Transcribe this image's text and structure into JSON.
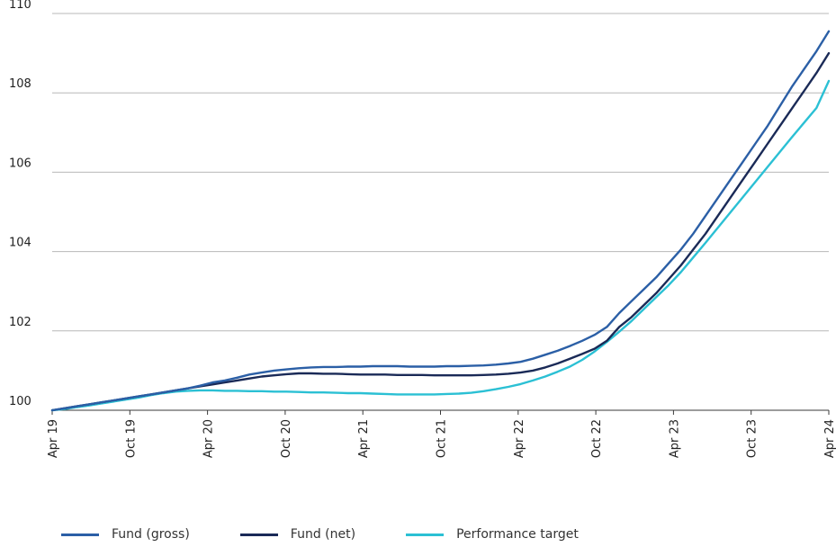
{
  "chart_data": {
    "type": "line",
    "title": "",
    "xlabel": "",
    "ylabel": "",
    "ylim": [
      100,
      110
    ],
    "yticks": [
      100,
      102,
      104,
      106,
      108,
      110
    ],
    "xticks": [
      "Apr 19",
      "Oct 19",
      "Apr 20",
      "Oct 20",
      "Apr 21",
      "Oct 21",
      "Apr 22",
      "Oct 22",
      "Apr 23",
      "Oct 23",
      "Apr 24"
    ],
    "grid": "horizontal",
    "legend_position": "bottom-left",
    "x_start": "Apr 19",
    "x_interval": "monthly",
    "series": [
      {
        "name": "Fund (gross)",
        "color": "#2b5fa6",
        "values": [
          100.0,
          100.05,
          100.1,
          100.15,
          100.2,
          100.25,
          100.3,
          100.35,
          100.4,
          100.45,
          100.5,
          100.55,
          100.62,
          100.7,
          100.75,
          100.82,
          100.9,
          100.95,
          101.0,
          101.03,
          101.06,
          101.08,
          101.09,
          101.09,
          101.1,
          101.1,
          101.11,
          101.11,
          101.11,
          101.1,
          101.1,
          101.1,
          101.11,
          101.11,
          101.12,
          101.13,
          101.15,
          101.18,
          101.22,
          101.3,
          101.4,
          101.5,
          101.62,
          101.75,
          101.9,
          102.1,
          102.45,
          102.75,
          103.05,
          103.35,
          103.7,
          104.05,
          104.45,
          104.9,
          105.35,
          105.8,
          106.25,
          106.7,
          107.15,
          107.65,
          108.15,
          108.6,
          109.05,
          109.55
        ]
      },
      {
        "name": "Fund (net)",
        "color": "#1a2a57",
        "values": [
          100.0,
          100.05,
          100.1,
          100.15,
          100.2,
          100.25,
          100.3,
          100.35,
          100.4,
          100.45,
          100.5,
          100.55,
          100.6,
          100.65,
          100.7,
          100.75,
          100.8,
          100.85,
          100.88,
          100.91,
          100.93,
          100.93,
          100.92,
          100.92,
          100.91,
          100.9,
          100.9,
          100.9,
          100.89,
          100.89,
          100.89,
          100.88,
          100.88,
          100.88,
          100.88,
          100.89,
          100.9,
          100.92,
          100.95,
          101.0,
          101.08,
          101.18,
          101.3,
          101.42,
          101.55,
          101.75,
          102.1,
          102.35,
          102.65,
          102.95,
          103.3,
          103.65,
          104.05,
          104.45,
          104.9,
          105.35,
          105.8,
          106.25,
          106.7,
          107.15,
          107.6,
          108.05,
          108.5,
          109.0
        ]
      },
      {
        "name": "Performance target",
        "color": "#2bc0d4",
        "values": [
          100.0,
          100.03,
          100.08,
          100.12,
          100.17,
          100.22,
          100.27,
          100.32,
          100.38,
          100.43,
          100.47,
          100.49,
          100.5,
          100.5,
          100.49,
          100.49,
          100.48,
          100.48,
          100.47,
          100.47,
          100.46,
          100.45,
          100.45,
          100.44,
          100.43,
          100.43,
          100.42,
          100.41,
          100.4,
          100.4,
          100.4,
          100.4,
          100.41,
          100.42,
          100.44,
          100.48,
          100.53,
          100.59,
          100.66,
          100.75,
          100.85,
          100.97,
          101.1,
          101.27,
          101.48,
          101.72,
          101.98,
          102.25,
          102.55,
          102.85,
          103.15,
          103.48,
          103.85,
          104.22,
          104.6,
          104.98,
          105.36,
          105.74,
          106.12,
          106.5,
          106.88,
          107.25,
          107.62,
          108.3
        ]
      }
    ]
  }
}
